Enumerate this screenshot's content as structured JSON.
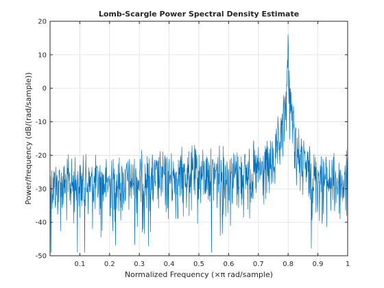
{
  "chart_data": {
    "type": "line",
    "title": "Lomb-Scargle Power Spectral Density Estimate",
    "xlabel": "Normalized Frequency  (×π rad/sample)",
    "ylabel": "Power/frequency (dB/(rad/sample))",
    "xlim": [
      0,
      1
    ],
    "ylim": [
      -50,
      20
    ],
    "xticks": [
      0.1,
      0.2,
      0.3,
      0.4,
      0.5,
      0.6,
      0.7,
      0.8,
      0.9,
      1
    ],
    "xtick_labels": [
      "0.1",
      "0.2",
      "0.3",
      "0.4",
      "0.5",
      "0.6",
      "0.7",
      "0.8",
      "0.9",
      "1"
    ],
    "yticks": [
      -50,
      -40,
      -30,
      -20,
      -10,
      0,
      10,
      20
    ],
    "ytick_labels": [
      "-50",
      "-40",
      "-30",
      "-20",
      "-10",
      "0",
      "10",
      "20"
    ],
    "grid": true,
    "series": [
      {
        "color": "#0072bd",
        "x_start": 0.0,
        "x_end": 1.0,
        "num_points": 1024,
        "noise_floor_db": -27,
        "peak_frequency": 0.8,
        "peak_value_db": 16,
        "min_value_db": -49
      }
    ]
  },
  "colors": {
    "line": "#0072bd",
    "axes": "#262626",
    "grid": "#dfdfdf",
    "background": "#ffffff"
  }
}
